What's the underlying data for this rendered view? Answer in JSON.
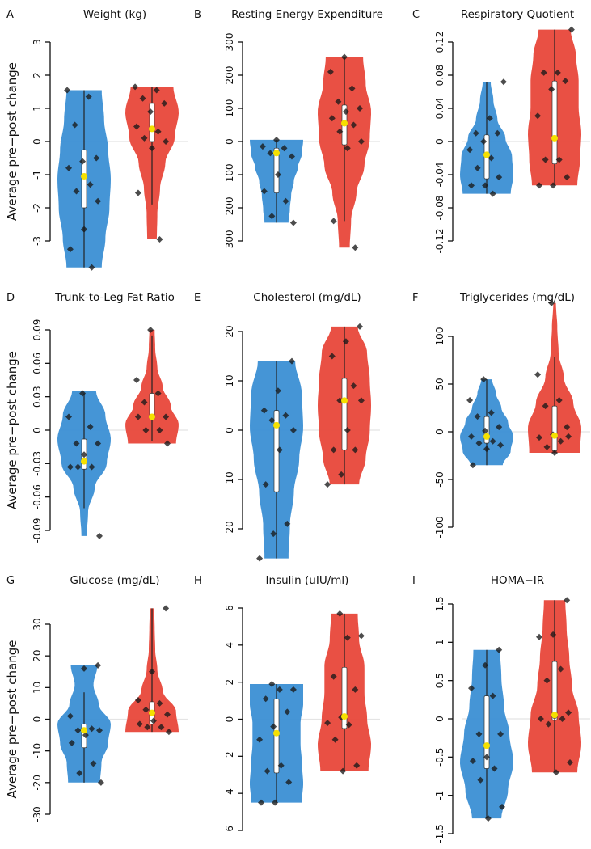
{
  "colors": {
    "control": "#3b8fd4",
    "treatment": "#e8473a",
    "median": "#f5e000",
    "points": "#1a1a1a"
  },
  "chart_data": [
    {
      "letter": "A",
      "title": "Weight (kg)",
      "type": "violin",
      "ylabel": "Average pre−post change",
      "ticks": [
        -3,
        -2,
        -1,
        0,
        1,
        2,
        3
      ],
      "tick_labels": [
        "-3",
        "-2",
        "-1",
        "0",
        "1",
        "2",
        "3"
      ],
      "ylim": [
        -3,
        3
      ],
      "groups": [
        {
          "color": "control",
          "range": [
            -3.8,
            1.55
          ],
          "density": [
            0.66,
            0.8,
            0.95,
            1.0,
            0.9,
            0.75,
            0.66
          ],
          "median": -1.05,
          "q1": -2.0,
          "q3": -0.25,
          "whisker": [
            -3.8,
            1.55
          ],
          "points": [
            1.55,
            1.35,
            0.5,
            -0.5,
            -0.6,
            -0.8,
            -1.3,
            -1.5,
            -1.8,
            -2.65,
            -3.25,
            -3.8
          ]
        },
        {
          "color": "treatment",
          "range": [
            -2.95,
            1.65
          ],
          "density": [
            0.18,
            0.2,
            0.3,
            0.5,
            0.85,
            1.0,
            0.8
          ],
          "median": 0.38,
          "q1": 0.0,
          "q3": 1.15,
          "whisker": [
            -1.9,
            1.65
          ],
          "points": [
            1.65,
            1.55,
            1.3,
            1.15,
            0.9,
            0.45,
            0.3,
            0.1,
            0.0,
            -0.2,
            -1.55,
            -2.95
          ]
        }
      ]
    },
    {
      "letter": "B",
      "title": "Resting Energy Expenditure",
      "type": "violin",
      "ticks": [
        -300,
        -200,
        -100,
        0,
        100,
        200,
        300
      ],
      "tick_labels": [
        "-300",
        "-200",
        "-100",
        "0",
        "100",
        "200",
        "300"
      ],
      "ylim": [
        -300,
        300
      ],
      "groups": [
        {
          "color": "control",
          "range": [
            -245,
            5
          ],
          "density": [
            0.45,
            0.5,
            0.55,
            0.65,
            0.8,
            0.95,
            1.0
          ],
          "median": -35,
          "q1": -155,
          "q3": -20,
          "whisker": [
            -245,
            5
          ],
          "points": [
            5,
            -15,
            -20,
            -35,
            -45,
            -100,
            -150,
            -180,
            -225,
            -245
          ]
        },
        {
          "color": "treatment",
          "range": [
            -320,
            255
          ],
          "density": [
            0.2,
            0.25,
            0.45,
            0.75,
            0.95,
            1.0,
            0.8,
            0.7
          ],
          "median": 55,
          "q1": -10,
          "q3": 110,
          "whisker": [
            -240,
            255
          ],
          "points": [
            255,
            210,
            160,
            120,
            100,
            90,
            70,
            50,
            30,
            0,
            -20,
            -240,
            -320
          ]
        }
      ]
    },
    {
      "letter": "C",
      "title": "Respiratory Quotient",
      "type": "violin",
      "ticks": [
        -0.12,
        -0.08,
        -0.04,
        0,
        0.04,
        0.08,
        0.12
      ],
      "tick_labels": [
        "-0.12",
        "-0.08",
        "-0.04",
        "0",
        "0.04",
        "0.08",
        "0.12"
      ],
      "ylim": [
        -0.12,
        0.12
      ],
      "groups": [
        {
          "color": "control",
          "range": [
            -0.063,
            0.072
          ],
          "density": [
            0.9,
            1.0,
            0.95,
            0.7,
            0.4,
            0.25,
            0.15
          ],
          "median": -0.016,
          "q1": -0.045,
          "q3": 0.008,
          "whisker": [
            -0.063,
            0.072
          ],
          "points": [
            0.072,
            0.028,
            0.01,
            0.01,
            0,
            -0.01,
            -0.02,
            -0.032,
            -0.043,
            -0.053,
            -0.053,
            -0.063
          ]
        },
        {
          "color": "treatment",
          "range": [
            -0.053,
            0.135
          ],
          "density": [
            0.85,
            0.95,
            1.0,
            0.9,
            0.9,
            0.8,
            0.6
          ],
          "median": 0.004,
          "q1": -0.027,
          "q3": 0.073,
          "whisker": [
            -0.053,
            0.135
          ],
          "points": [
            0.135,
            0.083,
            0.083,
            0.073,
            0.063,
            0.031,
            -0.022,
            -0.022,
            -0.043,
            -0.053,
            -0.053
          ]
        }
      ]
    },
    {
      "letter": "D",
      "title": "Trunk-to-Leg Fat Ratio",
      "type": "violin",
      "ylabel": "Average pre−post change",
      "ticks": [
        -0.09,
        -0.06,
        -0.03,
        0,
        0.03,
        0.06,
        0.09
      ],
      "tick_labels": [
        "-0.09",
        "-0.06",
        "-0.03",
        "0",
        "0.03",
        "0.06",
        "0.09"
      ],
      "ylim": [
        -0.09,
        0.09
      ],
      "groups": [
        {
          "color": "control",
          "range": [
            -0.095,
            0.035
          ],
          "density": [
            0.1,
            0.15,
            0.4,
            0.85,
            1.0,
            0.8,
            0.45
          ],
          "median": -0.028,
          "q1": -0.035,
          "q3": -0.008,
          "whisker": [
            -0.07,
            0.033
          ],
          "points": [
            0.033,
            0.012,
            0.003,
            -0.012,
            -0.012,
            -0.022,
            -0.033,
            -0.033,
            -0.033,
            -0.095
          ]
        },
        {
          "color": "treatment",
          "range": [
            -0.012,
            0.09
          ],
          "density": [
            0.9,
            1.0,
            0.7,
            0.4,
            0.2,
            0.12,
            0.1
          ],
          "median": 0.012,
          "q1": 0.01,
          "q3": 0.033,
          "whisker": [
            -0.01,
            0.085
          ],
          "points": [
            0.09,
            0.045,
            0.033,
            0.025,
            0.012,
            0.012,
            0.012,
            0.0,
            0.0,
            -0.012
          ]
        }
      ]
    },
    {
      "letter": "E",
      "title": "Cholesterol (mg/dL)",
      "type": "violin",
      "ticks": [
        -20,
        -10,
        0,
        10,
        20
      ],
      "tick_labels": [
        "-20",
        "-10",
        "0",
        "10",
        "20"
      ],
      "ylim": [
        -20,
        20
      ],
      "groups": [
        {
          "color": "control",
          "range": [
            -26,
            14
          ],
          "density": [
            0.45,
            0.5,
            0.65,
            0.85,
            1.0,
            0.95,
            0.7
          ],
          "median": 1,
          "q1": -12.5,
          "q3": 4,
          "whisker": [
            -26,
            14
          ],
          "points": [
            14,
            8,
            4,
            3,
            2,
            0,
            -4,
            -11,
            -19,
            -21,
            -26
          ]
        },
        {
          "color": "treatment",
          "range": [
            -11,
            21
          ],
          "density": [
            0.55,
            0.8,
            0.95,
            1.0,
            0.95,
            0.85,
            0.5
          ],
          "median": 6,
          "q1": -4,
          "q3": 10.5,
          "whisker": [
            -11,
            21
          ],
          "points": [
            21,
            18,
            15,
            9,
            6,
            6,
            0,
            -4,
            -4,
            -9,
            -11
          ]
        }
      ]
    },
    {
      "letter": "F",
      "title": "Triglycerides (mg/dL)",
      "type": "violin",
      "ticks": [
        -100,
        -50,
        0,
        50,
        100
      ],
      "tick_labels": [
        "-100",
        "-50",
        "0",
        "50",
        "100"
      ],
      "ylim": [
        -100,
        100
      ],
      "groups": [
        {
          "color": "control",
          "range": [
            -35,
            55
          ],
          "density": [
            0.6,
            0.9,
            1.0,
            0.8,
            0.55,
            0.35,
            0.2
          ],
          "median": -5,
          "q1": -12,
          "q3": 16,
          "whisker": [
            -35,
            55
          ],
          "points": [
            55,
            33,
            20,
            16,
            5,
            1,
            -5,
            -10,
            -12,
            -14,
            -18,
            -35
          ]
        },
        {
          "color": "treatment",
          "range": [
            -22,
            135
          ],
          "density": [
            0.95,
            1.0,
            0.7,
            0.35,
            0.15,
            0.1,
            0.05
          ],
          "median": -4,
          "q1": -20,
          "q3": 27,
          "whisker": [
            -22,
            78
          ],
          "points": [
            135,
            60,
            33,
            27,
            5,
            -3,
            -6,
            -10,
            -16,
            -5,
            -22
          ]
        }
      ]
    },
    {
      "letter": "G",
      "title": "Glucose (mg/dL)",
      "type": "violin",
      "ylabel": "Average pre−post change",
      "ticks": [
        -30,
        -20,
        -10,
        0,
        10,
        20,
        30
      ],
      "tick_labels": [
        "-30",
        "-20",
        "-10",
        "0",
        "10",
        "20",
        "30"
      ],
      "ylim": [
        -30,
        30
      ],
      "groups": [
        {
          "color": "control",
          "range": [
            -20,
            17
          ],
          "density": [
            0.6,
            0.65,
            0.9,
            1.0,
            0.55,
            0.35,
            0.5
          ],
          "median": -3.5,
          "q1": -9,
          "q3": -1.5,
          "whisker": [
            -20,
            8.5
          ],
          "points": [
            17,
            16,
            1,
            -3,
            -3.5,
            -3.5,
            -5,
            -7.5,
            -14,
            -17,
            -20
          ]
        },
        {
          "color": "treatment",
          "range": [
            -4,
            35
          ],
          "density": [
            1.0,
            0.9,
            0.4,
            0.2,
            0.12,
            0.1,
            0.08
          ],
          "median": 2,
          "q1": -1.5,
          "q3": 5.5,
          "whisker": [
            -4,
            35
          ],
          "points": [
            35,
            15,
            6,
            5,
            3,
            1.5,
            -0.5,
            -1.5,
            -2.5,
            -2.5,
            -4
          ]
        }
      ]
    },
    {
      "letter": "H",
      "title": "Insulin (uIU/ml)",
      "type": "violin",
      "ticks": [
        -6,
        -4,
        -2,
        0,
        2,
        4,
        6
      ],
      "tick_labels": [
        "-6",
        "-4",
        "-2",
        "0",
        "2",
        "4",
        "6"
      ],
      "ylim": [
        -6,
        6
      ],
      "groups": [
        {
          "color": "control",
          "range": [
            -4.5,
            1.9
          ],
          "density": [
            0.95,
            1.0,
            0.95,
            0.9,
            0.9,
            1.0,
            1.0
          ],
          "median": -0.75,
          "q1": -2.9,
          "q3": 1.1,
          "whisker": [
            -4.5,
            1.9
          ],
          "points": [
            1.9,
            1.6,
            1.6,
            1.1,
            0.4,
            -0.4,
            -1.1,
            -2.5,
            -2.8,
            -3.4,
            -4.5,
            -4.5
          ]
        },
        {
          "color": "treatment",
          "range": [
            -2.8,
            5.7
          ],
          "density": [
            0.9,
            1.0,
            0.85,
            0.75,
            0.75,
            0.55,
            0.5
          ],
          "median": 0.15,
          "q1": -0.5,
          "q3": 2.8,
          "whisker": [
            -2.8,
            5.7
          ],
          "points": [
            5.7,
            4.5,
            4.4,
            2.3,
            1.6,
            0.1,
            -0.2,
            -0.3,
            -1.1,
            -2.5,
            -2.8
          ]
        }
      ]
    },
    {
      "letter": "I",
      "title": "HOMA−IR",
      "type": "violin",
      "ticks": [
        -1.5,
        -1,
        -0.5,
        0,
        0.5,
        1,
        1.5
      ],
      "tick_labels": [
        "-1.5",
        "-1",
        "-0.5",
        "0",
        "0.5",
        "1",
        "1.5"
      ],
      "ylim": [
        -1.5,
        1.5
      ],
      "groups": [
        {
          "color": "control",
          "range": [
            -1.3,
            0.9
          ],
          "density": [
            0.55,
            0.8,
            1.0,
            0.85,
            0.65,
            0.55,
            0.5
          ],
          "median": -0.35,
          "q1": -0.65,
          "q3": 0.3,
          "whisker": [
            -1.3,
            0.9
          ],
          "points": [
            0.9,
            0.7,
            0.4,
            0.3,
            -0.2,
            -0.2,
            -0.5,
            -0.55,
            -0.65,
            -0.8,
            -1.15,
            -1.3
          ]
        },
        {
          "color": "treatment",
          "range": [
            -0.7,
            1.55
          ],
          "density": [
            0.85,
            1.0,
            0.9,
            0.65,
            0.55,
            0.45,
            0.4
          ],
          "median": 0.05,
          "q1": -0.02,
          "q3": 0.75,
          "whisker": [
            -0.7,
            1.55
          ],
          "points": [
            1.55,
            1.1,
            1.07,
            0.65,
            0.5,
            0.08,
            0.03,
            0.0,
            0.0,
            -0.07,
            -0.57,
            -0.7
          ]
        }
      ]
    }
  ]
}
